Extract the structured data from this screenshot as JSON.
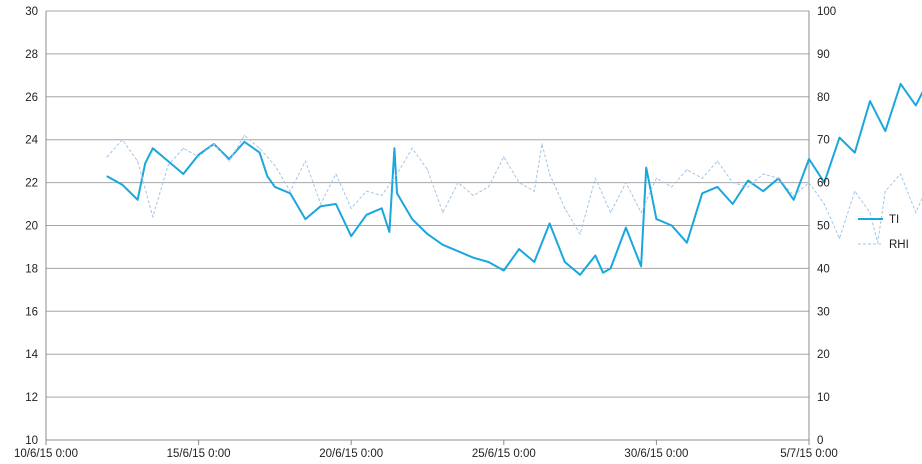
{
  "chart_data": {
    "type": "line",
    "title": "",
    "xlabel": "",
    "ylabel": "",
    "y2label": "",
    "grid": true,
    "legend_position": "right",
    "x_range": [
      "10/6/15 0:00",
      "5/7/15 0:00"
    ],
    "x_tick_labels": [
      "10/6/15 0:00",
      "15/6/15 0:00",
      "20/6/15 0:00",
      "25/6/15 0:00",
      "30/6/15 0:00",
      "5/7/15 0:00"
    ],
    "y_left": {
      "range": [
        10,
        30
      ],
      "tick_labels": [
        "10",
        "12",
        "14",
        "16",
        "18",
        "20",
        "22",
        "24",
        "26",
        "28",
        "30"
      ]
    },
    "y_right": {
      "range": [
        0,
        100
      ],
      "tick_labels": [
        "0",
        "10",
        "20",
        "30",
        "40",
        "50",
        "60",
        "70",
        "80",
        "90",
        "100"
      ]
    },
    "series": [
      {
        "name": "TI",
        "axis": "left",
        "color": "#1ba7dd",
        "style": "solid",
        "points": [
          [
            "12/6/15 0:00",
            22.3
          ],
          [
            "12/6/15 12:00",
            21.9
          ],
          [
            "13/6/15 0:00",
            21.2
          ],
          [
            "13/6/15 6:00",
            22.9
          ],
          [
            "13/6/15 12:00",
            23.6
          ],
          [
            "14/6/15 0:00",
            23.0
          ],
          [
            "14/6/15 12:00",
            22.4
          ],
          [
            "15/6/15 0:00",
            23.3
          ],
          [
            "15/6/15 12:00",
            23.8
          ],
          [
            "16/6/15 0:00",
            23.1
          ],
          [
            "16/6/15 12:00",
            23.9
          ],
          [
            "17/6/15 0:00",
            23.4
          ],
          [
            "17/6/15 6:00",
            22.3
          ],
          [
            "17/6/15 12:00",
            21.8
          ],
          [
            "18/6/15 0:00",
            21.5
          ],
          [
            "18/6/15 12:00",
            20.3
          ],
          [
            "19/6/15 0:00",
            20.9
          ],
          [
            "19/6/15 12:00",
            21.0
          ],
          [
            "20/6/15 0:00",
            19.5
          ],
          [
            "20/6/15 12:00",
            20.5
          ],
          [
            "21/6/15 0:00",
            20.8
          ],
          [
            "21/6/15 6:00",
            19.7
          ],
          [
            "21/6/15 10:00",
            23.6
          ],
          [
            "21/6/15 12:00",
            21.5
          ],
          [
            "22/6/15 0:00",
            20.3
          ],
          [
            "22/6/15 12:00",
            19.6
          ],
          [
            "23/6/15 0:00",
            19.1
          ],
          [
            "23/6/15 12:00",
            18.8
          ],
          [
            "24/6/15 0:00",
            18.5
          ],
          [
            "24/6/15 12:00",
            18.3
          ],
          [
            "25/6/15 0:00",
            17.9
          ],
          [
            "25/6/15 12:00",
            18.9
          ],
          [
            "26/6/15 0:00",
            18.3
          ],
          [
            "26/6/15 12:00",
            20.1
          ],
          [
            "27/6/15 0:00",
            18.3
          ],
          [
            "27/6/15 12:00",
            17.7
          ],
          [
            "28/6/15 0:00",
            18.6
          ],
          [
            "28/6/15 6:00",
            17.8
          ],
          [
            "28/6/15 12:00",
            18.0
          ],
          [
            "29/6/15 0:00",
            19.9
          ],
          [
            "29/6/15 12:00",
            18.1
          ],
          [
            "29/6/15 16:00",
            22.7
          ],
          [
            "30/6/15 0:00",
            20.3
          ],
          [
            "30/6/15 12:00",
            20.0
          ],
          [
            "1/7/15 0:00",
            19.2
          ],
          [
            "1/7/15 12:00",
            21.5
          ],
          [
            "2/7/15 0:00",
            21.8
          ],
          [
            "2/7/15 12:00",
            21.0
          ],
          [
            "3/7/15 0:00",
            22.1
          ],
          [
            "3/7/15 12:00",
            21.6
          ],
          [
            "4/7/15 0:00",
            22.2
          ],
          [
            "4/7/15 12:00",
            21.2
          ],
          [
            "5/7/15 0:00",
            23.1
          ],
          [
            "5/7/15 12:00",
            22.0
          ],
          [
            "6/7/15 0:00",
            24.1
          ],
          [
            "6/7/15 12:00",
            23.4
          ],
          [
            "7/7/15 0:00",
            25.8
          ],
          [
            "7/7/15 12:00",
            24.4
          ],
          [
            "8/7/15 0:00",
            26.6
          ],
          [
            "8/7/15 12:00",
            25.6
          ],
          [
            "9/7/15 0:00",
            27.0
          ],
          [
            "9/7/15 6:00",
            28.4
          ]
        ]
      },
      {
        "name": "RHI",
        "axis": "right",
        "color": "#a4c6e6",
        "style": "dashed",
        "points": [
          [
            "12/6/15 0:00",
            66
          ],
          [
            "12/6/15 12:00",
            70
          ],
          [
            "13/6/15 0:00",
            65
          ],
          [
            "13/6/15 12:00",
            52
          ],
          [
            "14/6/15 0:00",
            64
          ],
          [
            "14/6/15 12:00",
            68
          ],
          [
            "15/6/15 0:00",
            66
          ],
          [
            "15/6/15 12:00",
            69
          ],
          [
            "16/6/15 0:00",
            65
          ],
          [
            "16/6/15 12:00",
            71
          ],
          [
            "17/6/15 0:00",
            68
          ],
          [
            "17/6/15 12:00",
            64
          ],
          [
            "18/6/15 0:00",
            58
          ],
          [
            "18/6/15 12:00",
            65
          ],
          [
            "19/6/15 0:00",
            55
          ],
          [
            "19/6/15 12:00",
            62
          ],
          [
            "20/6/15 0:00",
            54
          ],
          [
            "20/6/15 12:00",
            58
          ],
          [
            "21/6/15 0:00",
            57
          ],
          [
            "21/6/15 12:00",
            62
          ],
          [
            "22/6/15 0:00",
            68
          ],
          [
            "22/6/15 12:00",
            63
          ],
          [
            "23/6/15 0:00",
            53
          ],
          [
            "23/6/15 12:00",
            60
          ],
          [
            "24/6/15 0:00",
            57
          ],
          [
            "24/6/15 12:00",
            59
          ],
          [
            "25/6/15 0:00",
            66
          ],
          [
            "25/6/15 12:00",
            60
          ],
          [
            "26/6/15 0:00",
            58
          ],
          [
            "26/6/15 6:00",
            69
          ],
          [
            "26/6/15 12:00",
            62
          ],
          [
            "27/6/15 0:00",
            54
          ],
          [
            "27/6/15 12:00",
            48
          ],
          [
            "28/6/15 0:00",
            61
          ],
          [
            "28/6/15 12:00",
            53
          ],
          [
            "29/6/15 0:00",
            60
          ],
          [
            "29/6/15 12:00",
            53
          ],
          [
            "30/6/15 0:00",
            61
          ],
          [
            "30/6/15 12:00",
            59
          ],
          [
            "1/7/15 0:00",
            63
          ],
          [
            "1/7/15 12:00",
            61
          ],
          [
            "2/7/15 0:00",
            65
          ],
          [
            "2/7/15 12:00",
            60
          ],
          [
            "3/7/15 0:00",
            59
          ],
          [
            "3/7/15 12:00",
            62
          ],
          [
            "4/7/15 0:00",
            61
          ],
          [
            "4/7/15 12:00",
            57
          ],
          [
            "5/7/15 0:00",
            60
          ],
          [
            "5/7/15 12:00",
            55
          ],
          [
            "6/7/15 0:00",
            47
          ],
          [
            "6/7/15 12:00",
            58
          ],
          [
            "7/7/15 0:00",
            53
          ],
          [
            "7/7/15 6:00",
            46
          ],
          [
            "7/7/15 12:00",
            58
          ],
          [
            "8/7/15 0:00",
            62
          ],
          [
            "8/7/15 12:00",
            53
          ],
          [
            "9/7/15 0:00",
            61
          ],
          [
            "9/7/15 6:00",
            51
          ]
        ]
      }
    ]
  },
  "colors": {
    "grid": "#a6a6a6",
    "axis": "#8c8c8c",
    "text": "#222222",
    "TI": "#1ba7dd",
    "RHI": "#a4c6e6"
  }
}
